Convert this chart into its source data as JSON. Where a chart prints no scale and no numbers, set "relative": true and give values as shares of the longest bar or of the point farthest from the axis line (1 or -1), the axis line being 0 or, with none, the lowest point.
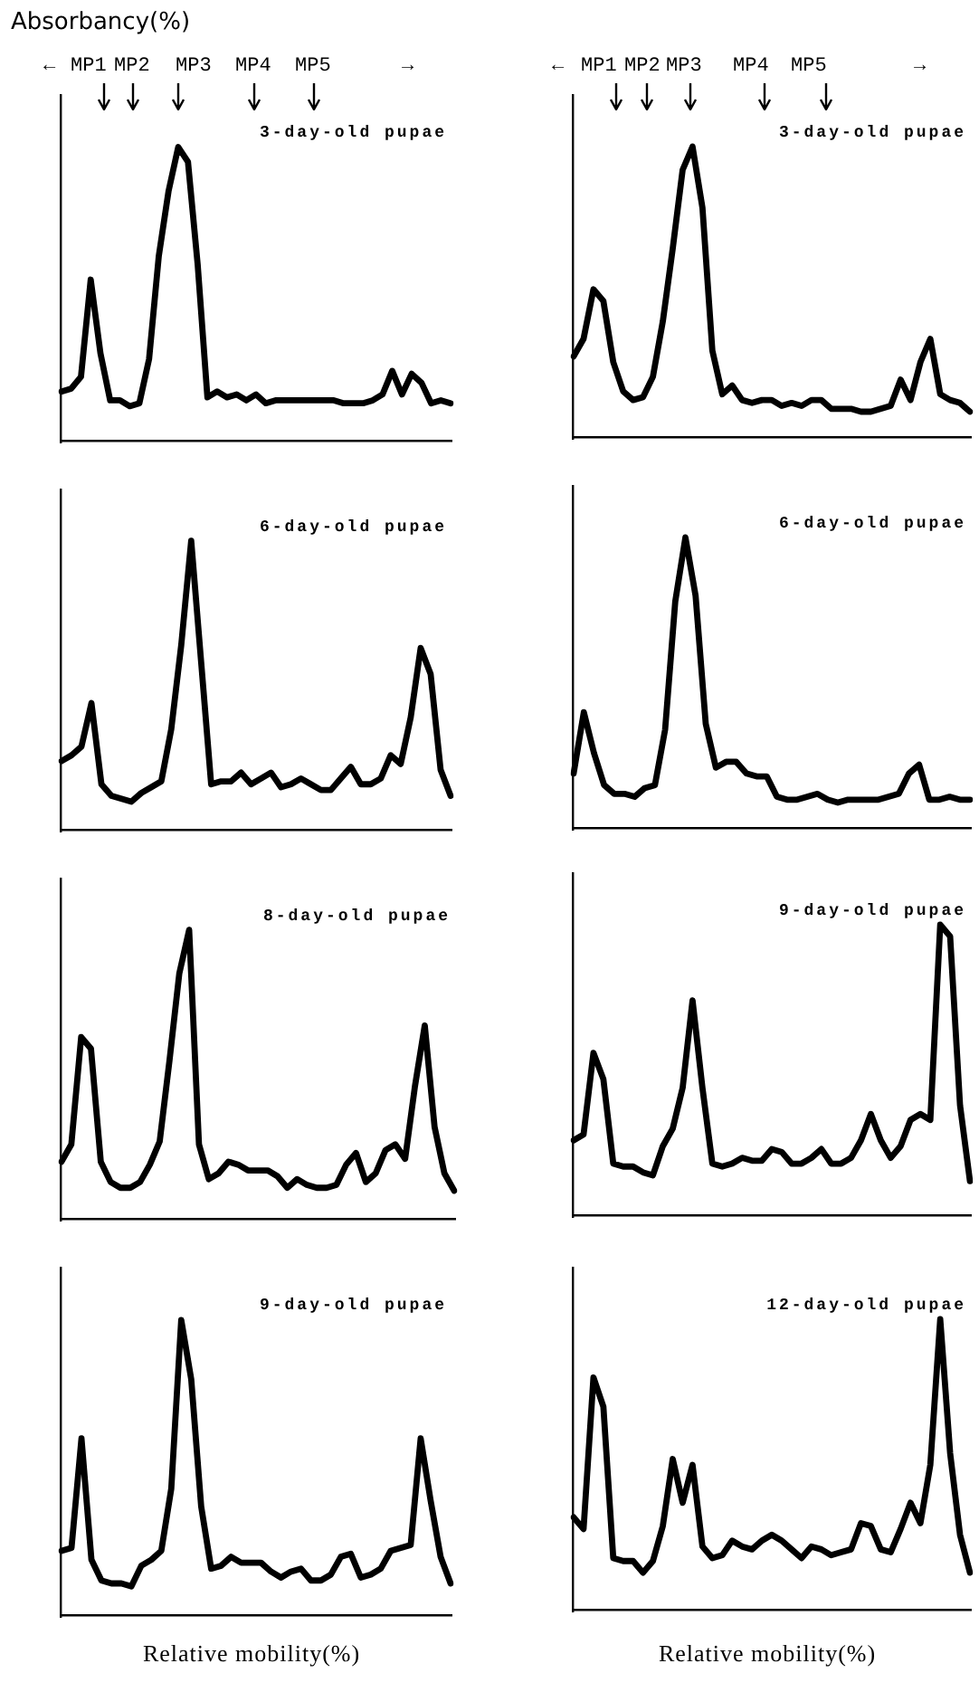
{
  "chart_data": [
    {
      "type": "line",
      "relative": true,
      "title": "3-day-old pupae",
      "ylabel": "Absorbancy(%)",
      "annotations": [
        "←",
        "MP1",
        "MP2",
        "MP3",
        "MP4",
        "MP5",
        "→"
      ],
      "color": "#000000",
      "marker": "none",
      "line_style": "solid",
      "categories": [
        null,
        null,
        null,
        null,
        null,
        null,
        null,
        null,
        null,
        null,
        null,
        null,
        null,
        null,
        null,
        null,
        null,
        null,
        null,
        null,
        null,
        null,
        null,
        null,
        null,
        null,
        null,
        null,
        null,
        null,
        null,
        null,
        null,
        null,
        null,
        null,
        null,
        null,
        null,
        null,
        null
      ],
      "values": [
        0.17,
        0.18,
        0.22,
        0.55,
        0.3,
        0.14,
        0.14,
        0.12,
        0.13,
        0.28,
        0.63,
        0.85,
        1,
        0.95,
        0.6,
        0.15,
        0.17,
        0.15,
        0.16,
        0.14,
        0.16,
        0.13,
        0.14,
        0.14,
        0.14,
        0.14,
        0.14,
        0.14,
        0.14,
        0.13,
        0.13,
        0.13,
        0.14,
        0.16,
        0.24,
        0.16,
        0.23,
        0.2,
        0.13,
        0.14,
        0.13
      ]
    },
    {
      "type": "line",
      "relative": true,
      "title": "3-day-old pupae",
      "annotations": [
        "←",
        "MP1",
        "MP2",
        "MP3",
        "MP4",
        "MP5",
        "→"
      ],
      "color": "#000000",
      "marker": "none",
      "line_style": "solid",
      "categories": [
        null,
        null,
        null,
        null,
        null,
        null,
        null,
        null,
        null,
        null,
        null,
        null,
        null,
        null,
        null,
        null,
        null,
        null,
        null,
        null,
        null,
        null,
        null,
        null,
        null,
        null,
        null,
        null,
        null,
        null,
        null,
        null,
        null,
        null,
        null,
        null,
        null,
        null,
        null,
        null,
        null
      ],
      "values": [
        0.28,
        0.34,
        0.51,
        0.47,
        0.26,
        0.16,
        0.13,
        0.14,
        0.21,
        0.4,
        0.65,
        0.92,
        1,
        0.79,
        0.3,
        0.15,
        0.18,
        0.13,
        0.12,
        0.13,
        0.13,
        0.11,
        0.12,
        0.11,
        0.13,
        0.13,
        0.1,
        0.1,
        0.1,
        0.09,
        0.09,
        0.1,
        0.11,
        0.2,
        0.13,
        0.26,
        0.34,
        0.15,
        0.13,
        0.12,
        0.09
      ]
    },
    {
      "type": "line",
      "relative": true,
      "title": "6-day-old pupae",
      "color": "#000000",
      "marker": "none",
      "line_style": "solid",
      "categories": [
        null,
        null,
        null,
        null,
        null,
        null,
        null,
        null,
        null,
        null,
        null,
        null,
        null,
        null,
        null,
        null,
        null,
        null,
        null,
        null,
        null,
        null,
        null,
        null,
        null,
        null,
        null,
        null,
        null,
        null,
        null,
        null,
        null,
        null,
        null,
        null,
        null,
        null,
        null,
        null
      ],
      "values": [
        0.24,
        0.26,
        0.29,
        0.44,
        0.16,
        0.12,
        0.11,
        0.1,
        0.13,
        0.15,
        0.17,
        0.35,
        0.64,
        1,
        0.58,
        0.16,
        0.17,
        0.17,
        0.2,
        0.16,
        0.18,
        0.2,
        0.15,
        0.16,
        0.18,
        0.16,
        0.14,
        0.14,
        0.18,
        0.22,
        0.16,
        0.16,
        0.18,
        0.26,
        0.23,
        0.39,
        0.63,
        0.54,
        0.21,
        0.12
      ]
    },
    {
      "type": "line",
      "relative": true,
      "title": "6-day-old pupae",
      "color": "#000000",
      "marker": "none",
      "line_style": "solid",
      "categories": [
        null,
        null,
        null,
        null,
        null,
        null,
        null,
        null,
        null,
        null,
        null,
        null,
        null,
        null,
        null,
        null,
        null,
        null,
        null,
        null,
        null,
        null,
        null,
        null,
        null,
        null,
        null,
        null,
        null,
        null,
        null,
        null,
        null,
        null,
        null,
        null,
        null,
        null,
        null,
        null
      ],
      "values": [
        0.19,
        0.4,
        0.26,
        0.15,
        0.12,
        0.12,
        0.11,
        0.14,
        0.15,
        0.34,
        0.78,
        1,
        0.8,
        0.36,
        0.21,
        0.23,
        0.23,
        0.19,
        0.18,
        0.18,
        0.11,
        0.1,
        0.1,
        0.11,
        0.12,
        0.1,
        0.09,
        0.1,
        0.1,
        0.1,
        0.1,
        0.11,
        0.12,
        0.19,
        0.22,
        0.1,
        0.1,
        0.11,
        0.1,
        0.1
      ]
    },
    {
      "type": "line",
      "relative": true,
      "title": "8-day-old pupae",
      "color": "#000000",
      "marker": "none",
      "line_style": "solid",
      "categories": [
        null,
        null,
        null,
        null,
        null,
        null,
        null,
        null,
        null,
        null,
        null,
        null,
        null,
        null,
        null,
        null,
        null,
        null,
        null,
        null,
        null,
        null,
        null,
        null,
        null,
        null,
        null,
        null,
        null,
        null,
        null,
        null,
        null,
        null,
        null,
        null,
        null,
        null,
        null,
        null,
        null
      ],
      "values": [
        0.2,
        0.26,
        0.63,
        0.59,
        0.2,
        0.13,
        0.11,
        0.11,
        0.13,
        0.19,
        0.27,
        0.55,
        0.85,
        1,
        0.26,
        0.14,
        0.16,
        0.2,
        0.19,
        0.17,
        0.17,
        0.17,
        0.15,
        0.11,
        0.14,
        0.12,
        0.11,
        0.11,
        0.12,
        0.19,
        0.23,
        0.13,
        0.16,
        0.24,
        0.26,
        0.21,
        0.46,
        0.67,
        0.32,
        0.16,
        0.1
      ]
    },
    {
      "type": "line",
      "relative": true,
      "title": "9-day-old pupae",
      "color": "#000000",
      "marker": "none",
      "line_style": "solid",
      "categories": [
        null,
        null,
        null,
        null,
        null,
        null,
        null,
        null,
        null,
        null,
        null,
        null,
        null,
        null,
        null,
        null,
        null,
        null,
        null,
        null,
        null,
        null,
        null,
        null,
        null,
        null,
        null,
        null,
        null,
        null,
        null,
        null,
        null,
        null,
        null,
        null,
        null,
        null,
        null,
        null,
        null
      ],
      "values": [
        0.26,
        0.28,
        0.56,
        0.47,
        0.18,
        0.17,
        0.17,
        0.15,
        0.14,
        0.24,
        0.3,
        0.44,
        0.74,
        0.44,
        0.18,
        0.17,
        0.18,
        0.2,
        0.19,
        0.19,
        0.23,
        0.22,
        0.18,
        0.18,
        0.2,
        0.23,
        0.18,
        0.18,
        0.2,
        0.26,
        0.35,
        0.26,
        0.2,
        0.24,
        0.33,
        0.35,
        0.33,
        1,
        0.96,
        0.38,
        0.12
      ]
    },
    {
      "type": "line",
      "relative": true,
      "title": "9-day-old pupae",
      "xlabel": "Relative mobility(%)",
      "color": "#000000",
      "marker": "none",
      "line_style": "solid",
      "categories": [
        null,
        null,
        null,
        null,
        null,
        null,
        null,
        null,
        null,
        null,
        null,
        null,
        null,
        null,
        null,
        null,
        null,
        null,
        null,
        null,
        null,
        null,
        null,
        null,
        null,
        null,
        null,
        null,
        null,
        null,
        null,
        null,
        null,
        null,
        null,
        null,
        null,
        null,
        null,
        null
      ],
      "values": [
        0.22,
        0.23,
        0.6,
        0.19,
        0.12,
        0.11,
        0.11,
        0.1,
        0.17,
        0.19,
        0.22,
        0.43,
        1,
        0.8,
        0.37,
        0.16,
        0.17,
        0.2,
        0.18,
        0.18,
        0.18,
        0.15,
        0.13,
        0.15,
        0.16,
        0.12,
        0.12,
        0.14,
        0.2,
        0.21,
        0.13,
        0.14,
        0.16,
        0.22,
        0.23,
        0.24,
        0.6,
        0.39,
        0.2,
        0.11
      ]
    },
    {
      "type": "line",
      "relative": true,
      "title": "12-day-old pupae",
      "xlabel": "Relative mobility(%)",
      "color": "#000000",
      "marker": "none",
      "line_style": "solid",
      "categories": [
        null,
        null,
        null,
        null,
        null,
        null,
        null,
        null,
        null,
        null,
        null,
        null,
        null,
        null,
        null,
        null,
        null,
        null,
        null,
        null,
        null,
        null,
        null,
        null,
        null,
        null,
        null,
        null,
        null,
        null,
        null,
        null,
        null,
        null,
        null,
        null,
        null,
        null,
        null,
        null,
        null
      ],
      "values": [
        0.32,
        0.28,
        0.8,
        0.7,
        0.18,
        0.17,
        0.17,
        0.13,
        0.17,
        0.29,
        0.52,
        0.37,
        0.5,
        0.22,
        0.18,
        0.19,
        0.24,
        0.22,
        0.21,
        0.24,
        0.26,
        0.24,
        0.21,
        0.18,
        0.22,
        0.21,
        0.19,
        0.2,
        0.21,
        0.3,
        0.29,
        0.21,
        0.2,
        0.28,
        0.37,
        0.3,
        0.5,
        1,
        0.54,
        0.26,
        0.13
      ]
    }
  ]
}
